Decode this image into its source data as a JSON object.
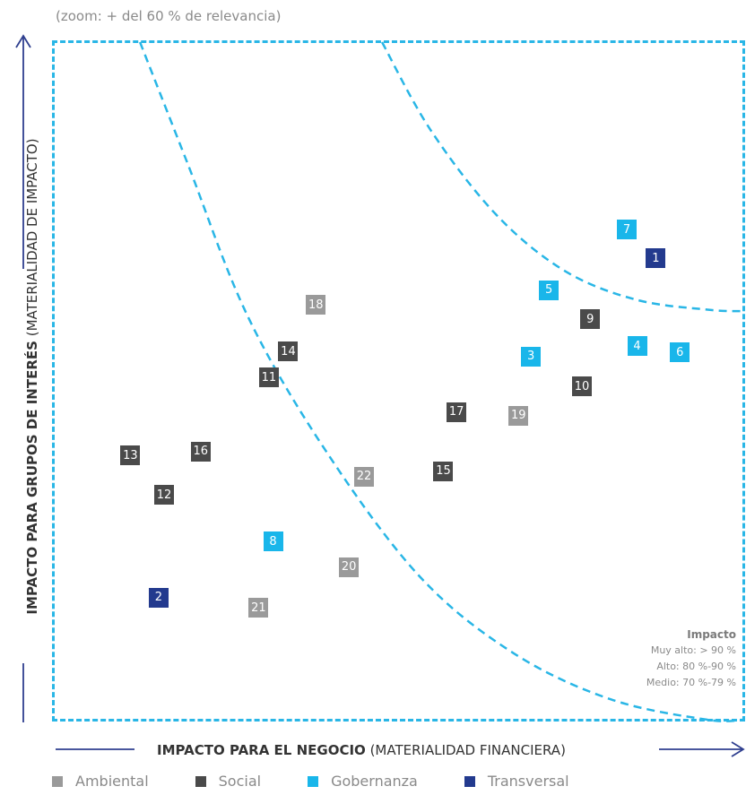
{
  "zoom_note": "(zoom: + del 60 % de relevancia)",
  "y_axis": {
    "bold": "IMPACTO PARA GRUPOS DE INTERÉS",
    "light": "(MATERIALIDAD DE IMPACTO)"
  },
  "x_axis": {
    "bold": "IMPACTO PARA EL NEGOCIO",
    "light": "(MATERIALIDAD FINANCIERA)"
  },
  "impact_legend": {
    "title": "Impacto",
    "items": [
      "Muy alto: > 90 %",
      "Alto: 80 %-90 %",
      "Medio: 70 %-79 %"
    ]
  },
  "colors": {
    "Ambiental": "#9a9a9a",
    "Social": "#4a4a4a",
    "Gobernanza": "#19b6ea",
    "Transversal": "#233a8e",
    "frame": "#29b6e6",
    "axis_line": "#2f3f8f"
  },
  "chart_data": {
    "type": "scatter",
    "x_range": [
      0,
      100
    ],
    "y_range": [
      0,
      100
    ],
    "legend_placement": "bottom",
    "categories": [
      {
        "name": "Ambiental"
      },
      {
        "name": "Social"
      },
      {
        "name": "Gobernanza"
      },
      {
        "name": "Transversal"
      }
    ],
    "points": [
      {
        "label": "1",
        "category": "Transversal",
        "x": 87.3,
        "y": 68.1
      },
      {
        "label": "2",
        "category": "Transversal",
        "x": 15.2,
        "y": 18.0
      },
      {
        "label": "3",
        "category": "Gobernanza",
        "x": 69.2,
        "y": 53.6
      },
      {
        "label": "4",
        "category": "Gobernanza",
        "x": 84.6,
        "y": 55.1
      },
      {
        "label": "5",
        "category": "Gobernanza",
        "x": 71.8,
        "y": 63.4
      },
      {
        "label": "6",
        "category": "Gobernanza",
        "x": 90.8,
        "y": 54.2
      },
      {
        "label": "7",
        "category": "Gobernanza",
        "x": 83.1,
        "y": 72.3
      },
      {
        "label": "8",
        "category": "Gobernanza",
        "x": 31.8,
        "y": 26.3
      },
      {
        "label": "9",
        "category": "Social",
        "x": 77.8,
        "y": 59.1
      },
      {
        "label": "10",
        "category": "Social",
        "x": 76.6,
        "y": 49.2
      },
      {
        "label": "11",
        "category": "Social",
        "x": 31.2,
        "y": 50.5
      },
      {
        "label": "12",
        "category": "Social",
        "x": 16.0,
        "y": 33.2
      },
      {
        "label": "13",
        "category": "Social",
        "x": 11.1,
        "y": 39.0
      },
      {
        "label": "14",
        "category": "Social",
        "x": 34.0,
        "y": 54.3
      },
      {
        "label": "15",
        "category": "Social",
        "x": 56.5,
        "y": 36.7
      },
      {
        "label": "16",
        "category": "Social",
        "x": 21.3,
        "y": 39.6
      },
      {
        "label": "17",
        "category": "Social",
        "x": 58.4,
        "y": 45.4
      },
      {
        "label": "18",
        "category": "Ambiental",
        "x": 38.0,
        "y": 61.2
      },
      {
        "label": "19",
        "category": "Ambiental",
        "x": 67.4,
        "y": 44.9
      },
      {
        "label": "20",
        "category": "Ambiental",
        "x": 42.8,
        "y": 22.5
      },
      {
        "label": "21",
        "category": "Ambiental",
        "x": 29.7,
        "y": 16.5
      },
      {
        "label": "22",
        "category": "Ambiental",
        "x": 45.0,
        "y": 35.9
      }
    ],
    "threshold_curves": [
      {
        "level": "Muy alto",
        "points": [
          [
            47.6,
            100
          ],
          [
            54.6,
            87.1
          ],
          [
            64.1,
            74.6
          ],
          [
            74.0,
            66.3
          ],
          [
            84.4,
            62.0
          ],
          [
            95.0,
            60.5
          ],
          [
            100,
            60.3
          ]
        ]
      },
      {
        "level": "Alto",
        "points": [
          [
            12.5,
            100
          ],
          [
            19.4,
            82.1
          ],
          [
            28.1,
            59.6
          ],
          [
            39.5,
            39.6
          ],
          [
            53.1,
            21.1
          ],
          [
            66.7,
            9.8
          ],
          [
            80.8,
            3.0
          ],
          [
            94.8,
            0
          ],
          [
            100,
            0
          ]
        ]
      }
    ]
  }
}
